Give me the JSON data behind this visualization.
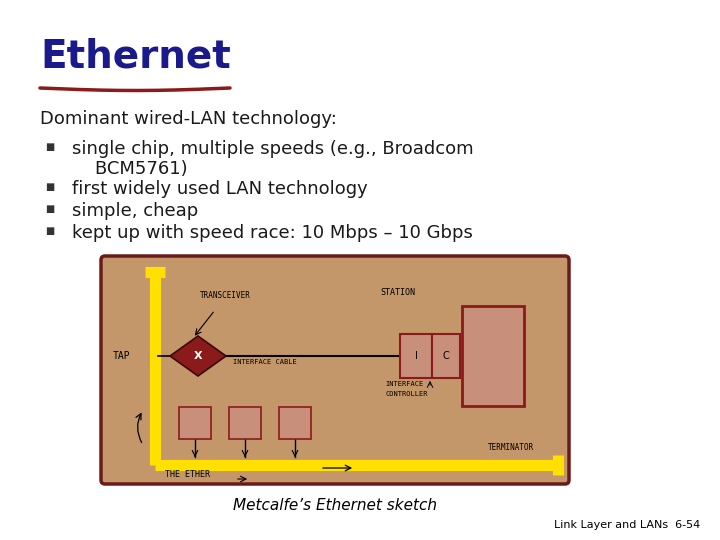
{
  "title": "Ethernet",
  "title_color": "#1a1a8c",
  "title_underline_color": "#8b1a1a",
  "background_color": "#ffffff",
  "body_text_color": "#1a1a1a",
  "intro_line": "Dominant wired-LAN technology:",
  "bullet1a": "single chip, multiple speeds (e.g., Broadcom",
  "bullet1b": "    BCM5761)",
  "bullet2": "first widely used LAN technology",
  "bullet3": "simple, cheap",
  "bullet4": "kept up with speed race: 10 Mbps – 10 Gbps",
  "caption": "Metcalfe’s Ethernet sketch",
  "footer": "Link Layer and LANs  6-54",
  "sketch_bg": "#c4976a",
  "sketch_border": "#6b1a1a",
  "sketch_yellow": "#ffe000",
  "sketch_red": "#8b1a1a"
}
